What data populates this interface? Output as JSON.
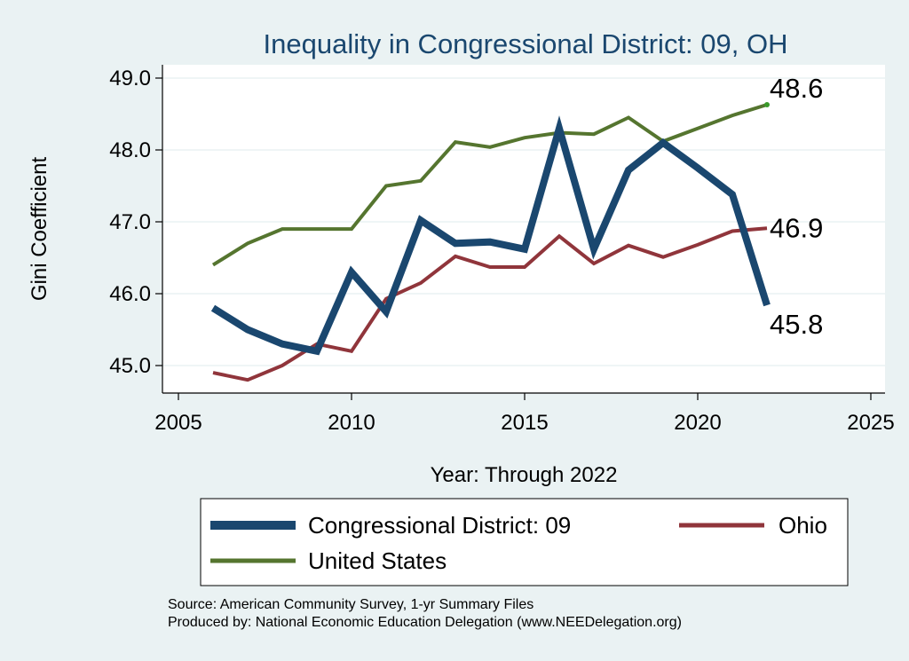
{
  "chart_data": {
    "type": "line",
    "title": "Inequality in Congressional District:  09, OH",
    "xlabel": "Year: Through 2022",
    "ylabel": "Gini Coefficient",
    "xlim": [
      2004.5,
      2025.5
    ],
    "ylim": [
      44.7,
      49.2
    ],
    "x_ticks": [
      2005,
      2010,
      2015,
      2020,
      2025
    ],
    "x_tick_labels": [
      "2005",
      "2010",
      "2015",
      "2020",
      "2025"
    ],
    "y_ticks": [
      45,
      46,
      47,
      48,
      49
    ],
    "y_tick_labels": [
      "45.0",
      "46.0",
      "47.0",
      "48.0",
      "49.0"
    ],
    "grid": true,
    "x": [
      2006,
      2007,
      2008,
      2009,
      2010,
      2011,
      2012,
      2013,
      2014,
      2015,
      2016,
      2017,
      2018,
      2019,
      2020,
      2021,
      2022
    ],
    "series": [
      {
        "name": "Congressional District:  09",
        "color": "#1a476f",
        "values": [
          45.8,
          45.5,
          45.3,
          45.2,
          46.3,
          45.75,
          47.02,
          46.7,
          46.72,
          46.62,
          48.3,
          46.62,
          47.72,
          48.1,
          47.75,
          47.38,
          45.84
        ],
        "end_label": "45.8"
      },
      {
        "name": "Ohio",
        "color": "#90353b",
        "values": [
          44.9,
          44.8,
          45.0,
          45.3,
          45.2,
          45.93,
          46.15,
          46.52,
          46.37,
          46.37,
          46.8,
          46.42,
          46.67,
          46.51,
          46.68,
          46.87,
          46.91
        ],
        "end_label": "46.9"
      },
      {
        "name": "United States",
        "color": "#55752f",
        "values": [
          46.4,
          46.7,
          46.9,
          46.9,
          46.9,
          47.5,
          47.57,
          48.11,
          48.04,
          48.17,
          48.24,
          48.22,
          48.45,
          48.12,
          48.3,
          48.48,
          48.63
        ],
        "end_label": "48.6"
      }
    ],
    "legend": {
      "position": "bottom",
      "entries": [
        "Congressional District:  09",
        "Ohio",
        "United States"
      ]
    },
    "notes": [
      "Source: American Community Survey, 1-yr Summary Files",
      "Produced by: National Economic Education Delegation (www.NEEDelegation.org)"
    ]
  },
  "colors": {
    "background": "#eaf2f3",
    "plot_background": "#ffffff",
    "title": "#1a476f",
    "grid": "#eaf2f3"
  }
}
